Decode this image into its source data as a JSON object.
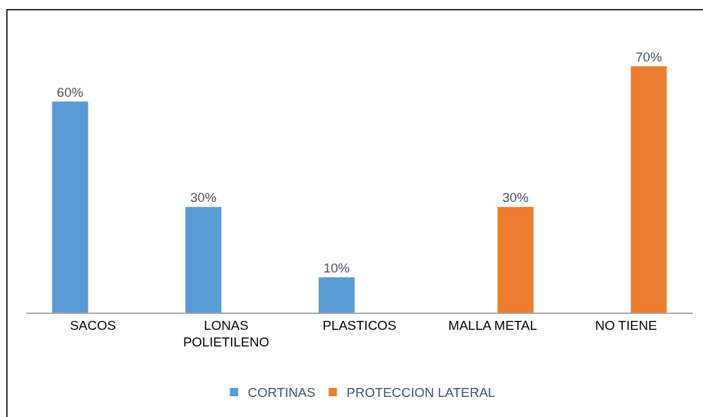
{
  "chart_data": {
    "type": "bar",
    "categories": [
      "SACOS",
      "LONAS POLIETILENO",
      "PLASTICOS",
      "MALLA METAL",
      "NO TIENE"
    ],
    "series": [
      {
        "name": "CORTINAS",
        "color": "#5b9bd5",
        "values": [
          60,
          30,
          10,
          null,
          null
        ],
        "value_labels": [
          "60%",
          "30%",
          "10%",
          null,
          null
        ]
      },
      {
        "name": "PROTECCION LATERAL",
        "color": "#ed7d31",
        "values": [
          null,
          null,
          null,
          30,
          70
        ],
        "value_labels": [
          null,
          null,
          null,
          "30%",
          "70%"
        ]
      }
    ],
    "legend": "bottom",
    "tick_labels": "x"
  }
}
